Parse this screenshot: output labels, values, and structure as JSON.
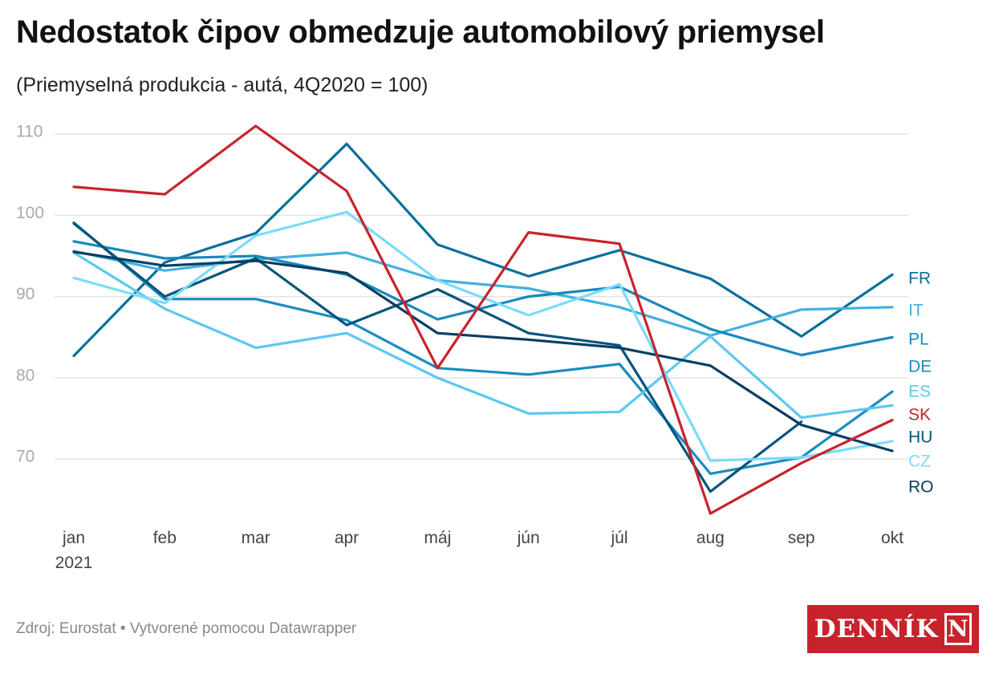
{
  "chart_data": {
    "type": "line",
    "title": "Nedostatok čipov obmedzuje automobilový priemysel",
    "subtitle": "(Priemyselná produkcia - autá, 4Q2020 = 100)",
    "categories": [
      "jan",
      "feb",
      "mar",
      "apr",
      "máj",
      "jún",
      "júl",
      "aug",
      "sep",
      "okt"
    ],
    "x_sublabel": "2021",
    "ylim": [
      63,
      111
    ],
    "yticks": [
      70,
      80,
      90,
      100,
      110
    ],
    "grid": true,
    "legend": "right (labels at line ends)",
    "series": [
      {
        "name": "FR",
        "color": "#0a6f9a",
        "values": [
          82.7,
          94.2,
          97.8,
          108.8,
          96.4,
          92.5,
          95.7,
          92.2,
          85.1,
          92.7
        ]
      },
      {
        "name": "IT",
        "color": "#43b0e0",
        "values": [
          95.6,
          93.2,
          94.6,
          95.4,
          92.0,
          91.0,
          88.7,
          85.2,
          88.4,
          88.7
        ]
      },
      {
        "name": "PL",
        "color": "#1889bb",
        "values": [
          96.8,
          94.7,
          95.0,
          92.7,
          87.2,
          90.0,
          91.2,
          86.0,
          82.8,
          85.0
        ]
      },
      {
        "name": "DE",
        "color": "#1a8cc0",
        "values": [
          99.1,
          89.7,
          89.7,
          87.1,
          81.2,
          80.4,
          81.7,
          68.2,
          70.2,
          78.3
        ]
      },
      {
        "name": "ES",
        "color": "#5cc8f0",
        "values": [
          95.4,
          88.5,
          83.7,
          85.5,
          80.0,
          75.6,
          75.8,
          85.1,
          75.1,
          76.6
        ]
      },
      {
        "name": "SK",
        "color": "#c8232c",
        "values": [
          103.5,
          102.6,
          111.0,
          103.0,
          81.2,
          97.9,
          96.5,
          63.3,
          69.5,
          74.8
        ]
      },
      {
        "name": "HU",
        "color": "#06557c",
        "values": [
          99.0,
          90.0,
          94.7,
          86.5,
          90.9,
          85.5,
          84.0,
          66.0,
          74.6,
          null
        ]
      },
      {
        "name": "CZ",
        "color": "#7adcf7",
        "values": [
          92.3,
          89.2,
          97.5,
          100.4,
          92.0,
          87.7,
          91.5,
          69.8,
          70.2,
          72.2
        ]
      },
      {
        "name": "RO",
        "color": "#083e62",
        "values": [
          95.5,
          93.8,
          94.4,
          92.9,
          85.5,
          84.7,
          83.7,
          81.5,
          74.2,
          71.0
        ]
      }
    ]
  },
  "footer": {
    "source": "Zdroj: Eurostat • Vytvorené pomocou Datawrapper"
  },
  "logo": {
    "text": "DENNÍK",
    "letter": "N"
  }
}
